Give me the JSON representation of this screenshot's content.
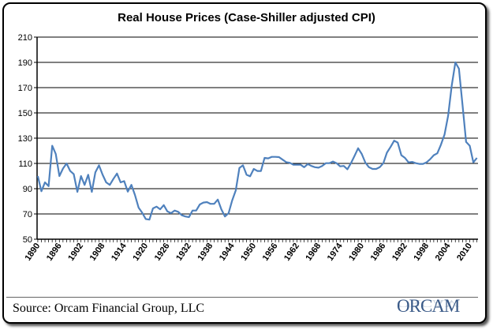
{
  "chart_data": {
    "type": "line",
    "title": "Real House Prices (Case-Shiller adjusted CPI)",
    "xlabel": "",
    "ylabel": "",
    "ylim": [
      50,
      210
    ],
    "yticks": [
      50,
      70,
      90,
      110,
      130,
      150,
      170,
      190,
      210
    ],
    "xtick_labels": [
      "1890",
      "1896",
      "1902",
      "1908",
      "1914",
      "1920",
      "1926",
      "1932",
      "1938",
      "1944",
      "1950",
      "1956",
      "1962",
      "1968",
      "1974",
      "1980",
      "1986",
      "1992",
      "1998",
      "2004",
      "2010"
    ],
    "grid": true,
    "line_color": "#4f81bd",
    "x": [
      1890,
      1891,
      1892,
      1893,
      1894,
      1895,
      1896,
      1897,
      1898,
      1899,
      1900,
      1901,
      1902,
      1903,
      1904,
      1905,
      1906,
      1907,
      1908,
      1909,
      1910,
      1911,
      1912,
      1913,
      1914,
      1915,
      1916,
      1917,
      1918,
      1919,
      1920,
      1921,
      1922,
      1923,
      1924,
      1925,
      1926,
      1927,
      1928,
      1929,
      1930,
      1931,
      1932,
      1933,
      1934,
      1935,
      1936,
      1937,
      1938,
      1939,
      1940,
      1941,
      1942,
      1943,
      1944,
      1945,
      1946,
      1947,
      1948,
      1949,
      1950,
      1951,
      1952,
      1953,
      1954,
      1955,
      1956,
      1957,
      1958,
      1959,
      1960,
      1961,
      1962,
      1963,
      1964,
      1965,
      1966,
      1967,
      1968,
      1969,
      1970,
      1971,
      1972,
      1973,
      1974,
      1975,
      1976,
      1977,
      1978,
      1979,
      1980,
      1981,
      1982,
      1983,
      1984,
      1985,
      1986,
      1987,
      1988,
      1989,
      1990,
      1991,
      1992,
      1993,
      1994,
      1995,
      1996,
      1997,
      1998,
      1999,
      2000,
      2001,
      2002,
      2003,
      2004,
      2005,
      2006,
      2007,
      2008,
      2009,
      2010,
      2011,
      2012
    ],
    "values": [
      100,
      88,
      95,
      92,
      124,
      117.5,
      100,
      106,
      110,
      104,
      101.5,
      87.5,
      100,
      93,
      101,
      87.5,
      103,
      108.5,
      101,
      95,
      93,
      97.7,
      102,
      95,
      96,
      87.7,
      93,
      85,
      75,
      71,
      66,
      65.5,
      74.4,
      75.8,
      73.7,
      77,
      72,
      70.6,
      72.7,
      71.7,
      69,
      68,
      67.5,
      72.7,
      72.7,
      77.5,
      79,
      79.4,
      78,
      78,
      81.4,
      73.7,
      68,
      70.6,
      80.6,
      88.7,
      106.4,
      108.5,
      101,
      99.8,
      105.6,
      104,
      104,
      114.4,
      114,
      115.2,
      115.2,
      115,
      113,
      111,
      110.5,
      109,
      109,
      109,
      107,
      109.5,
      108,
      107,
      106.6,
      108,
      110.2,
      110.2,
      111.5,
      110.2,
      107.7,
      108,
      105.4,
      110.2,
      116,
      122,
      117.5,
      110.6,
      107,
      105.6,
      105.6,
      107,
      110.2,
      118.5,
      123,
      128,
      126.5,
      116.5,
      114.4,
      110.8,
      111.2,
      110.2,
      109.6,
      109.6,
      110.8,
      113.3,
      116.5,
      118,
      124.8,
      133,
      147.7,
      171.7,
      190,
      185,
      156,
      127,
      124,
      110.8,
      114.4
    ]
  },
  "footer": {
    "source": "Source: Orcam Financial Group, LLC",
    "logo_text": "ORCAM"
  }
}
